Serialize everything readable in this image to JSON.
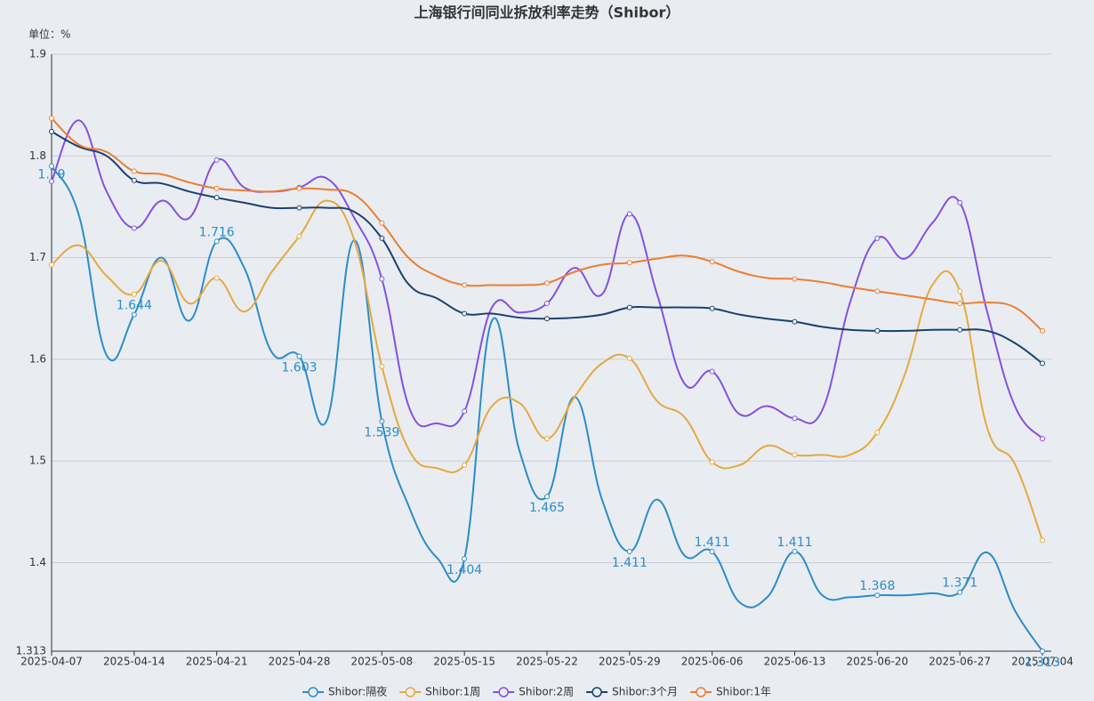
{
  "chart_data": {
    "type": "line",
    "title": "上海银行间同业拆放利率走势（Shibor）",
    "unit_label": "单位：%",
    "categories": [
      "2025-04-07",
      null,
      null,
      "2025-04-14",
      null,
      null,
      "2025-04-21",
      null,
      null,
      "2025-04-28",
      null,
      null,
      "2025-05-08",
      null,
      null,
      "2025-05-15",
      null,
      null,
      "2025-05-22",
      null,
      null,
      "2025-05-29",
      null,
      null,
      "2025-06-06",
      null,
      null,
      "2025-06-13",
      null,
      null,
      "2025-06-20",
      null,
      null,
      "2025-06-27",
      null,
      null,
      "2025-07-04"
    ],
    "ylim": [
      1.313,
      1.9
    ],
    "yticks": [
      1.313,
      1.4,
      1.5,
      1.6,
      1.7,
      1.8,
      1.9
    ],
    "grid": true,
    "legend": "bottom",
    "series": [
      {
        "name": "Shibor:隔夜",
        "color": "#2b8ccc",
        "show_labels": true,
        "values": [
          1.79,
          1.741,
          1.604,
          1.644,
          1.7,
          1.638,
          1.716,
          1.69,
          1.607,
          1.603,
          1.54,
          1.717,
          1.539,
          1.454,
          1.405,
          1.404,
          1.638,
          1.51,
          1.465,
          1.563,
          1.462,
          1.411,
          1.462,
          1.407,
          1.411,
          1.361,
          1.366,
          1.411,
          1.368,
          1.366,
          1.368,
          1.368,
          1.37,
          1.371,
          1.41,
          1.353,
          1.313
        ]
      },
      {
        "name": "Shibor:1周",
        "color": "#e5a93f",
        "show_labels": false,
        "values": [
          1.693,
          1.712,
          1.682,
          1.664,
          1.697,
          1.655,
          1.68,
          1.647,
          1.686,
          1.721,
          1.756,
          1.717,
          1.593,
          1.51,
          1.493,
          1.496,
          1.554,
          1.557,
          1.522,
          1.563,
          1.596,
          1.601,
          1.559,
          1.543,
          1.499,
          1.496,
          1.515,
          1.506,
          1.506,
          1.506,
          1.528,
          1.585,
          1.673,
          1.667,
          1.532,
          1.497,
          1.422
        ]
      },
      {
        "name": "Shibor:2周",
        "color": "#8450e4",
        "show_labels": false,
        "values": [
          1.775,
          1.835,
          1.765,
          1.729,
          1.756,
          1.739,
          1.796,
          1.769,
          1.765,
          1.769,
          1.778,
          1.739,
          1.679,
          1.552,
          1.537,
          1.549,
          1.651,
          1.646,
          1.655,
          1.69,
          1.664,
          1.743,
          1.664,
          1.576,
          1.588,
          1.546,
          1.554,
          1.542,
          1.55,
          1.655,
          1.719,
          1.699,
          1.734,
          1.754,
          1.646,
          1.554,
          1.522
        ]
      },
      {
        "name": "Shibor:3个月",
        "color": "#1d3f70",
        "show_labels": false,
        "values": [
          1.824,
          1.809,
          1.8,
          1.776,
          1.773,
          1.765,
          1.759,
          1.754,
          1.749,
          1.749,
          1.749,
          1.745,
          1.719,
          1.673,
          1.66,
          1.645,
          1.645,
          1.641,
          1.64,
          1.641,
          1.644,
          1.651,
          1.651,
          1.651,
          1.65,
          1.644,
          1.64,
          1.637,
          1.632,
          1.629,
          1.628,
          1.628,
          1.629,
          1.629,
          1.628,
          1.616,
          1.596
        ]
      },
      {
        "name": "Shibor:1年",
        "color": "#ee7d30",
        "show_labels": false,
        "values": [
          1.837,
          1.811,
          1.804,
          1.785,
          1.782,
          1.774,
          1.768,
          1.766,
          1.765,
          1.768,
          1.767,
          1.762,
          1.734,
          1.699,
          1.682,
          1.673,
          1.673,
          1.673,
          1.675,
          1.686,
          1.693,
          1.695,
          1.699,
          1.702,
          1.696,
          1.686,
          1.68,
          1.679,
          1.676,
          1.671,
          1.667,
          1.663,
          1.659,
          1.655,
          1.656,
          1.651,
          1.628
        ]
      }
    ]
  }
}
